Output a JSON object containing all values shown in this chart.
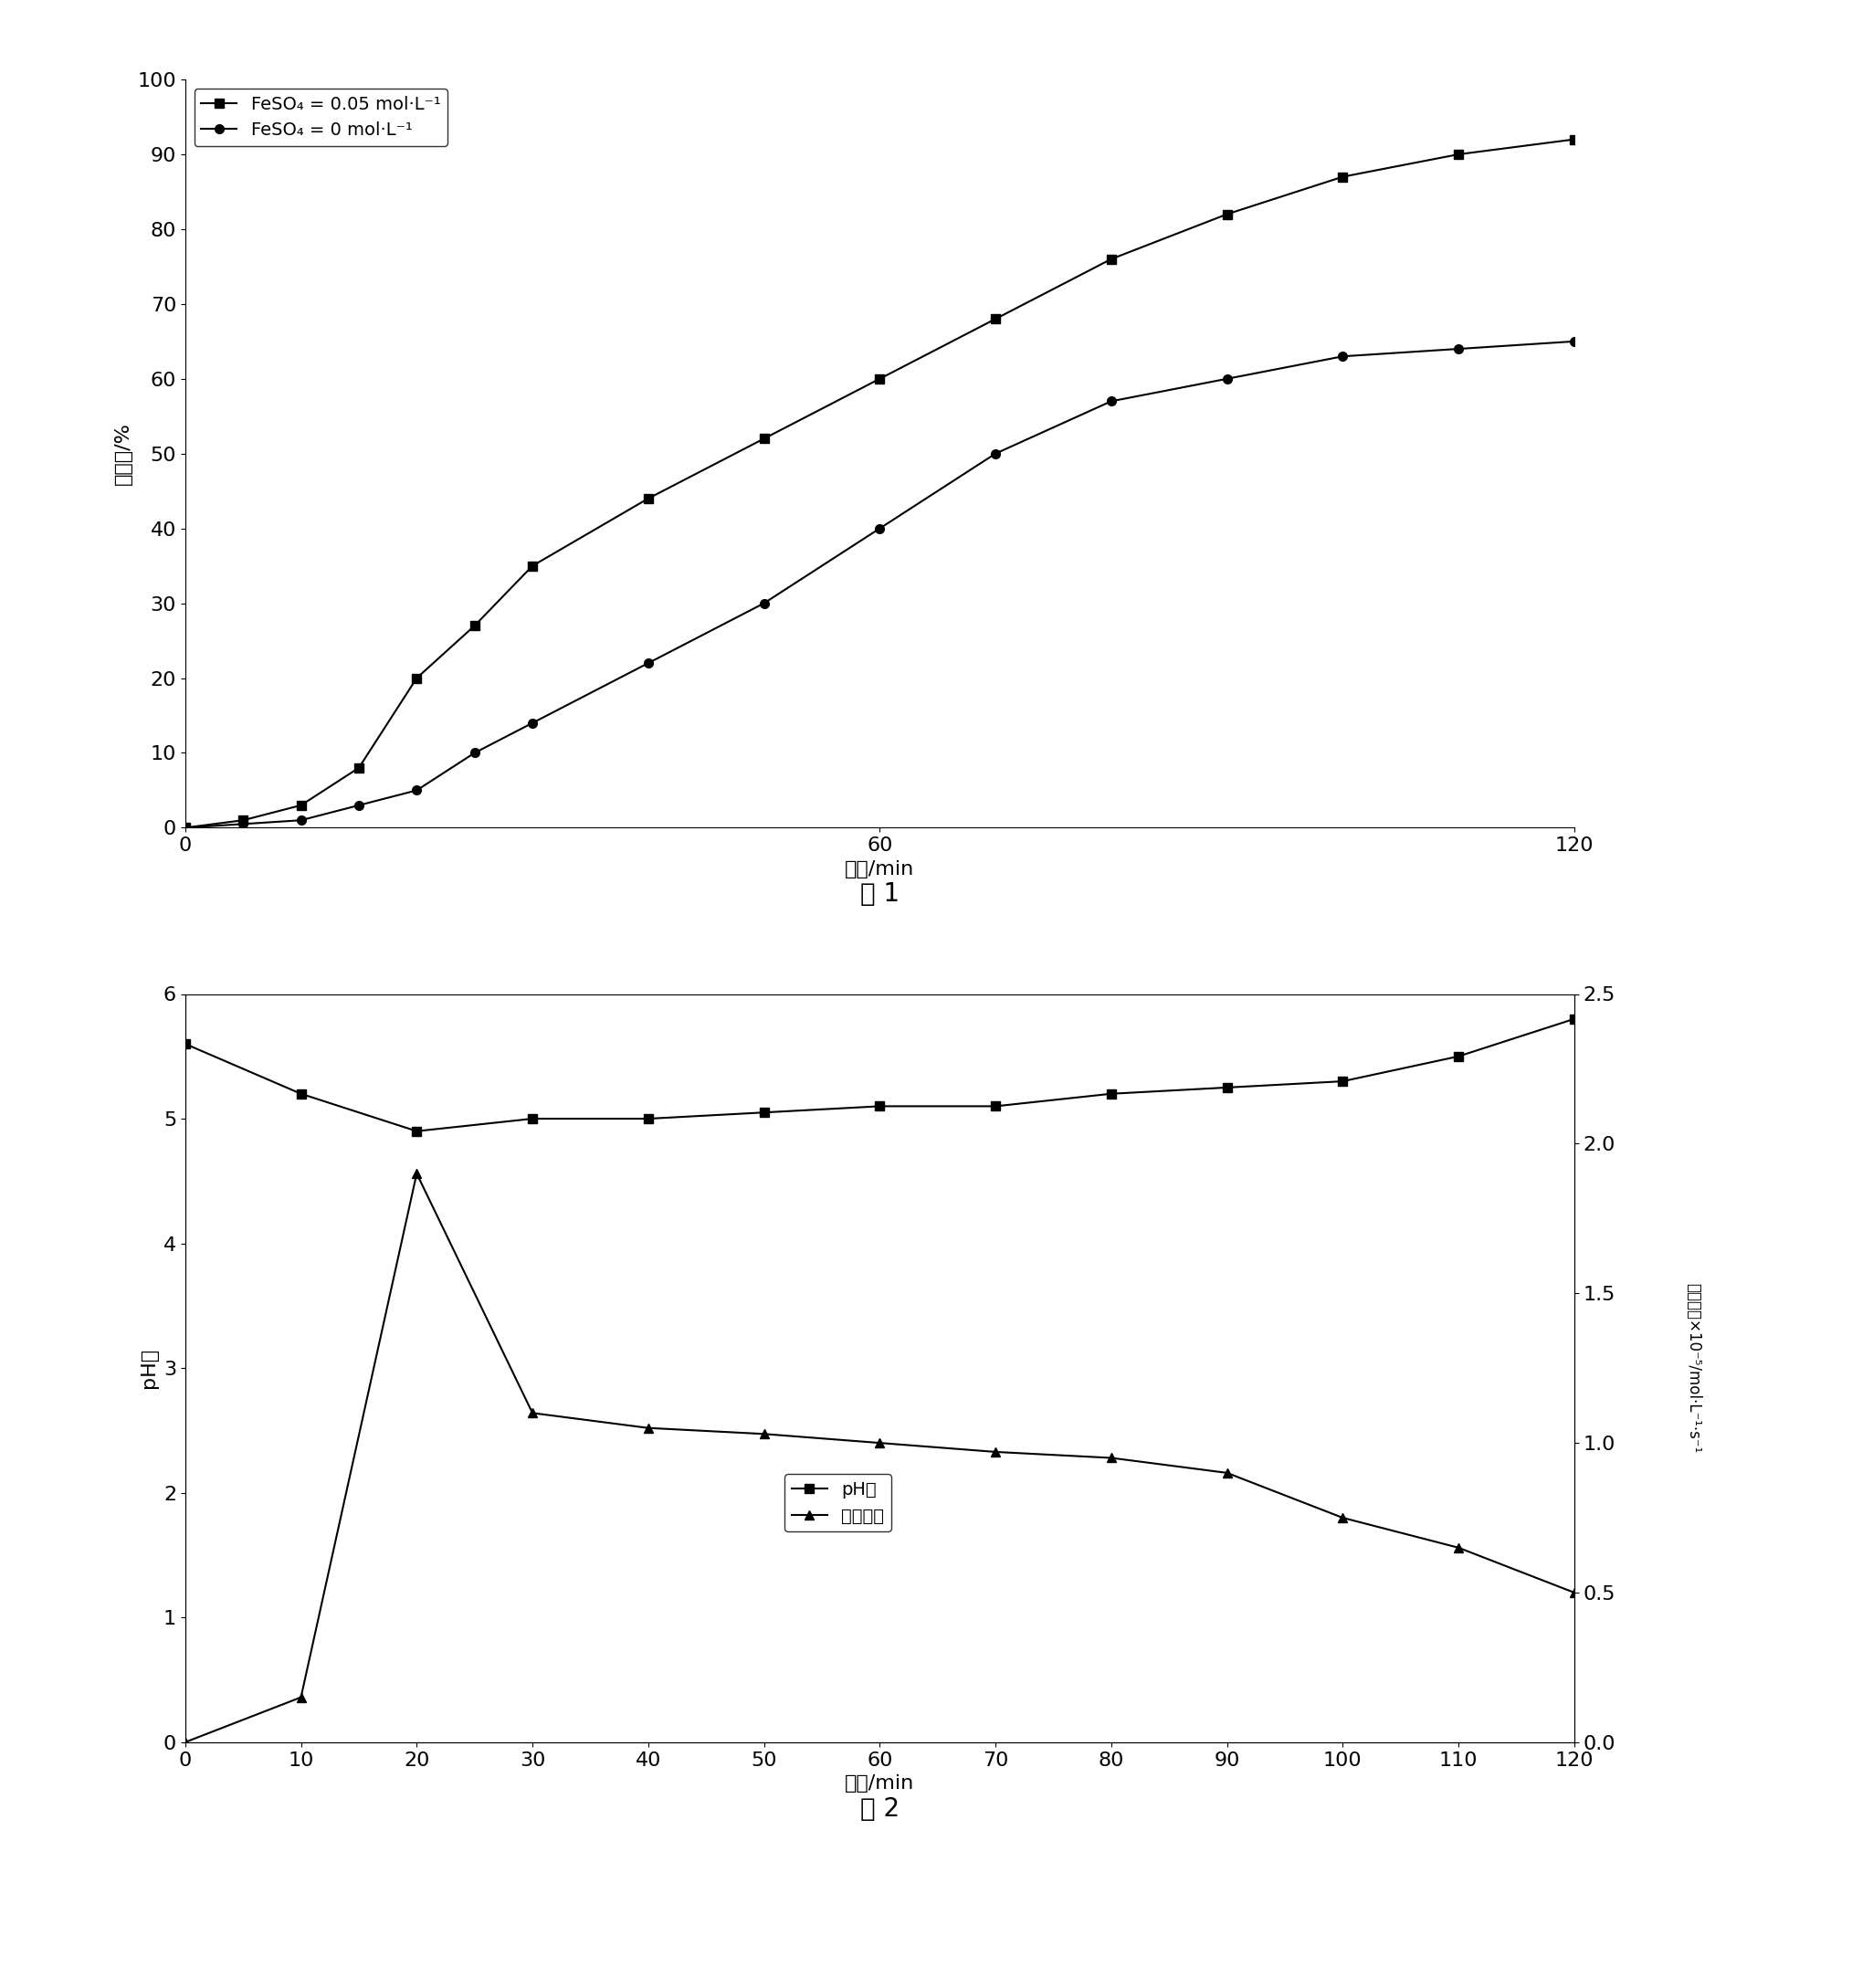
{
  "fig1": {
    "xlabel": "时间/min",
    "ylabel": "氧化率/%",
    "caption": "图 1",
    "xlim": [
      0,
      120
    ],
    "ylim": [
      0,
      100
    ],
    "xticks": [
      0,
      60,
      120
    ],
    "yticks": [
      0,
      10,
      20,
      30,
      40,
      50,
      60,
      70,
      80,
      90,
      100
    ],
    "series1": {
      "label": "FeSO₄ = 0.05 mol·L⁻¹",
      "x": [
        0,
        5,
        10,
        15,
        20,
        25,
        30,
        40,
        50,
        60,
        70,
        80,
        90,
        100,
        110,
        120
      ],
      "y": [
        0,
        1,
        3,
        8,
        20,
        27,
        35,
        44,
        52,
        60,
        68,
        76,
        82,
        87,
        90,
        92
      ],
      "color": "#000000",
      "marker": "s",
      "linestyle": "-"
    },
    "series2": {
      "label": "FeSO₄ = 0 mol·L⁻¹",
      "x": [
        0,
        5,
        10,
        15,
        20,
        25,
        30,
        40,
        50,
        60,
        70,
        80,
        90,
        100,
        110,
        120
      ],
      "y": [
        0,
        0.5,
        1,
        3,
        5,
        10,
        14,
        22,
        30,
        40,
        50,
        57,
        60,
        63,
        64,
        65
      ],
      "color": "#000000",
      "marker": "o",
      "linestyle": "-"
    }
  },
  "fig2": {
    "xlabel": "时间/min",
    "ylabel_left": "pH値",
    "ylabel_right_line1": "氧化速率×10⁻⁵/mol·L⁻¹·s⁻¹",
    "caption": "图 2",
    "xlim": [
      0,
      120
    ],
    "ylim_left": [
      0,
      6
    ],
    "ylim_right": [
      0,
      2.5
    ],
    "xticks": [
      0,
      10,
      20,
      30,
      40,
      50,
      60,
      70,
      80,
      90,
      100,
      110,
      120
    ],
    "yticks_left": [
      0,
      1,
      2,
      3,
      4,
      5,
      6
    ],
    "yticks_right": [
      0,
      0.5,
      1.0,
      1.5,
      2.0,
      2.5
    ],
    "ph_series": {
      "label": "pH値",
      "x": [
        0,
        10,
        20,
        30,
        40,
        50,
        60,
        70,
        80,
        90,
        100,
        110,
        120
      ],
      "y": [
        5.6,
        5.2,
        4.9,
        5.0,
        5.0,
        5.05,
        5.1,
        5.1,
        5.2,
        5.25,
        5.3,
        5.5,
        5.8
      ],
      "color": "#000000",
      "marker": "s",
      "linestyle": "-"
    },
    "rate_series": {
      "label": "氧化速率",
      "x": [
        0,
        10,
        20,
        30,
        40,
        50,
        60,
        70,
        80,
        90,
        100,
        110,
        120
      ],
      "y": [
        0,
        0.15,
        1.9,
        1.1,
        1.05,
        1.03,
        1.0,
        0.97,
        0.95,
        0.9,
        0.75,
        0.65,
        0.5
      ],
      "color": "#000000",
      "marker": "^",
      "linestyle": "-"
    }
  },
  "background_color": "#ffffff",
  "font_size": 16,
  "caption_font_size": 20,
  "legend_font_size": 14
}
